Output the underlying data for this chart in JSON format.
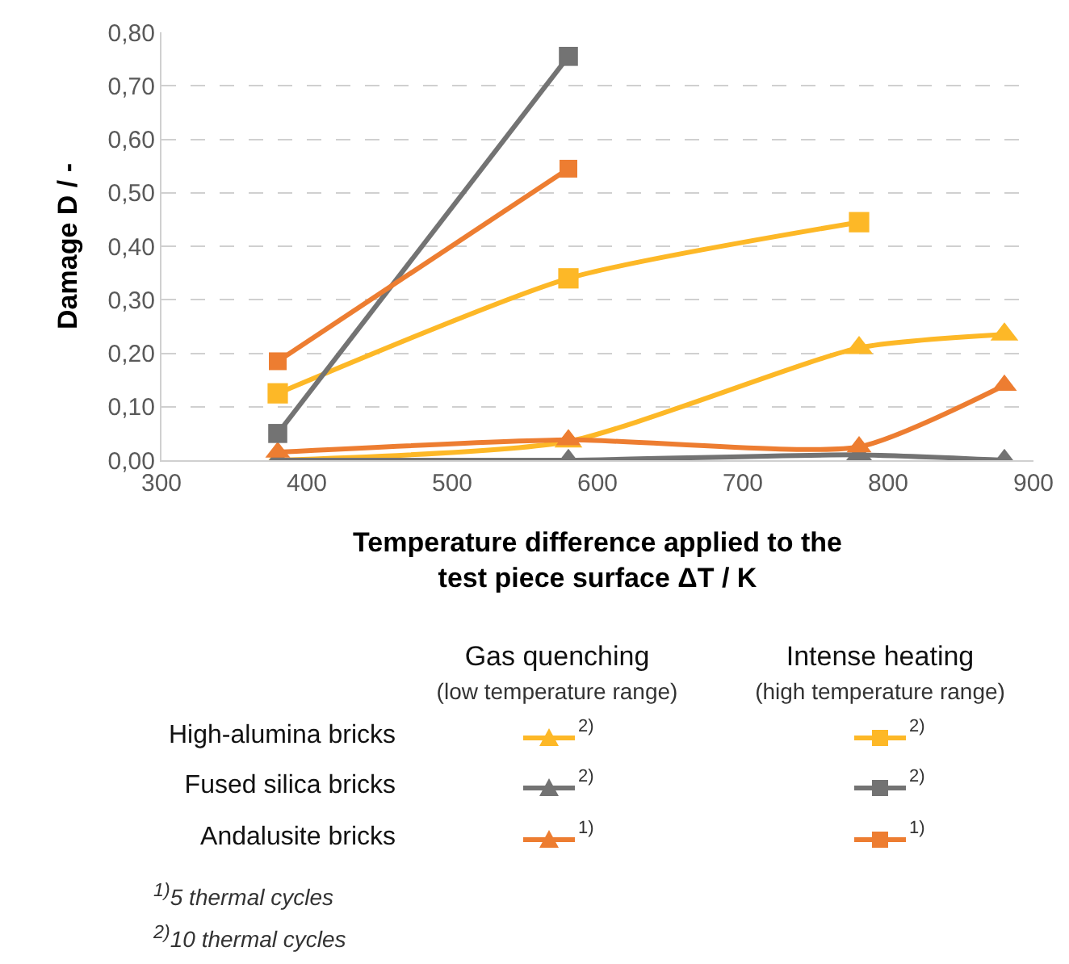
{
  "chart_data": {
    "type": "line",
    "xlabel": "Temperature difference applied to the\ntest piece surface ΔT / K",
    "ylabel": "Damage D / -",
    "xlim": [
      300,
      900
    ],
    "xticks": [
      300,
      400,
      500,
      600,
      700,
      800,
      900
    ],
    "ylim": [
      0,
      0.8
    ],
    "yticks": [
      {
        "value": 0,
        "label": "0,00"
      },
      {
        "value": 0.1,
        "label": "0,10"
      },
      {
        "value": 0.2,
        "label": "0,20"
      },
      {
        "value": 0.3,
        "label": "0,30"
      },
      {
        "value": 0.4,
        "label": "0,40"
      },
      {
        "value": 0.5,
        "label": "0,50"
      },
      {
        "value": 0.6,
        "label": "0,60"
      },
      {
        "value": 0.7,
        "label": "0,70"
      },
      {
        "value": 0.8,
        "label": "0,80"
      }
    ],
    "grid": "y",
    "series": [
      {
        "color": "#fdb827",
        "marker": "triangle",
        "x": [
          380,
          580,
          780,
          880
        ],
        "values": [
          0.0,
          0.035,
          0.21,
          0.235
        ]
      },
      {
        "color": "#737373",
        "marker": "triangle",
        "x": [
          380,
          580,
          780,
          880
        ],
        "values": [
          0.0,
          0.0,
          0.01,
          0.0
        ]
      },
      {
        "color": "#ed7d31",
        "marker": "triangle",
        "x": [
          380,
          580,
          780,
          880
        ],
        "values": [
          0.015,
          0.038,
          0.025,
          0.14
        ]
      },
      {
        "color": "#fdb827",
        "marker": "square",
        "x": [
          380,
          580,
          780
        ],
        "values": [
          0.125,
          0.34,
          0.445
        ]
      },
      {
        "color": "#737373",
        "marker": "square",
        "x": [
          380,
          580
        ],
        "values": [
          0.05,
          0.755
        ]
      },
      {
        "color": "#ed7d31",
        "marker": "square",
        "x": [
          380,
          580
        ],
        "values": [
          0.185,
          0.545
        ]
      }
    ],
    "annotations": [
      "Gas quenching",
      "(low temperature range)",
      "Intense heating",
      "(high temperature range)",
      "High-alumina bricks",
      "Fused silica bricks",
      "Andalusite bricks",
      "2)",
      "2)",
      "1)",
      "2)",
      "2)",
      "1)",
      "$^{1)}$5 thermal cycles",
      "$^{2)}$10 thermal cycles"
    ]
  }
}
